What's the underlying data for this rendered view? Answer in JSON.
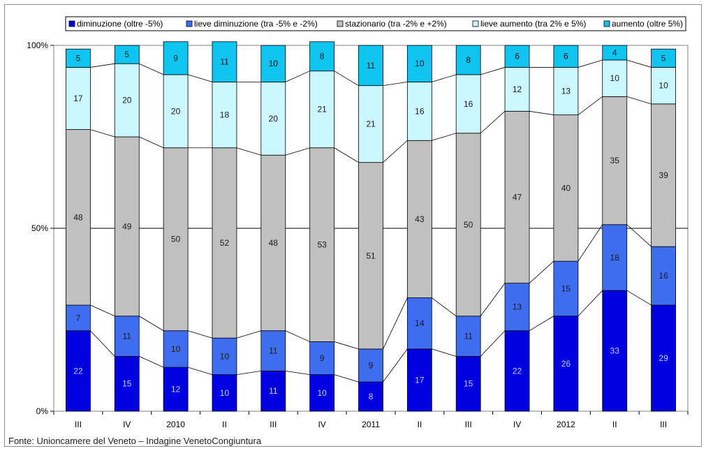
{
  "chart_data": {
    "type": "bar",
    "stacked": true,
    "percent": true,
    "categories": [
      "III",
      "IV",
      "2010",
      "II",
      "III",
      "IV",
      "2011",
      "II",
      "III",
      "IV",
      "2012",
      "II",
      "III"
    ],
    "series": [
      {
        "name": "diminuzione (oltre -5%)",
        "color": "#0000e0",
        "label_color": "#c8c8ff",
        "values": [
          22,
          15,
          12,
          10,
          11,
          10,
          8,
          17,
          15,
          22,
          26,
          33,
          29
        ]
      },
      {
        "name": "lieve diminuzione (tra -5% e -2%)",
        "color": "#3f6df0",
        "label_color": "#1a1a1a",
        "values": [
          7,
          11,
          10,
          10,
          11,
          9,
          9,
          14,
          11,
          13,
          15,
          18,
          16
        ]
      },
      {
        "name": "stazionario (tra -2% e +2%)",
        "color": "#c0c0c0",
        "label_color": "#1a1a1a",
        "values": [
          48,
          49,
          50,
          52,
          48,
          53,
          51,
          43,
          50,
          47,
          40,
          35,
          39
        ]
      },
      {
        "name": "lieve aumento (tra 2% e 5%)",
        "color": "#ccf7ff",
        "label_color": "#1a1a1a",
        "values": [
          17,
          20,
          20,
          18,
          20,
          21,
          21,
          16,
          16,
          12,
          13,
          10,
          10
        ]
      },
      {
        "name": "aumento (oltre 5%)",
        "color": "#10c4f0",
        "label_color": "#1a1a1a",
        "values": [
          5,
          5,
          9,
          11,
          10,
          8,
          11,
          10,
          8,
          6,
          6,
          4,
          5
        ]
      }
    ],
    "y_ticks": [
      "0%",
      "50%",
      "100%"
    ],
    "ylim": [
      0,
      100
    ],
    "gridline_at": 50,
    "connector_lines": true,
    "legend_position": "top"
  },
  "source": "Fonte: Unioncamere del Veneto – Indagine VenetoCongiuntura"
}
